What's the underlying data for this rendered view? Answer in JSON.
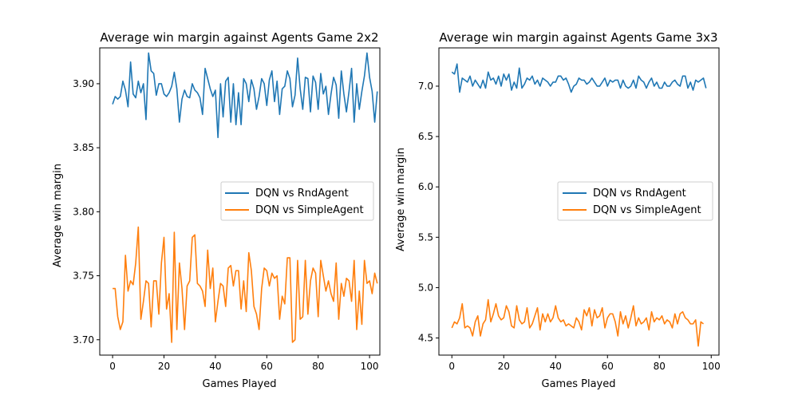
{
  "chart_data": [
    {
      "type": "line",
      "title": "Average win margin against Agents Game 2x2",
      "xlabel": "Games Played",
      "ylabel": "Average win margin",
      "xlim": [
        -5,
        104
      ],
      "ylim": [
        3.688,
        3.928
      ],
      "xticks": [
        0,
        20,
        40,
        60,
        80,
        100
      ],
      "yticks": [
        3.7,
        3.75,
        3.8,
        3.85,
        3.9
      ],
      "ytick_labels": [
        "3.70",
        "3.75",
        "3.80",
        "3.85",
        "3.90"
      ],
      "legend_location": "center-right",
      "grid": false,
      "series": [
        {
          "name": "DQN vs RndAgent",
          "color": "#1f77b4",
          "values": [
            3.884,
            3.89,
            3.888,
            3.89,
            3.902,
            3.895,
            3.882,
            3.917,
            3.892,
            3.889,
            3.902,
            3.893,
            3.9,
            3.872,
            3.924,
            3.91,
            3.908,
            3.891,
            3.9,
            3.9,
            3.892,
            3.89,
            3.893,
            3.898,
            3.909,
            3.896,
            3.87,
            3.888,
            3.895,
            3.89,
            3.889,
            3.9,
            3.895,
            3.893,
            3.889,
            3.876,
            3.912,
            3.904,
            3.896,
            3.89,
            3.895,
            3.858,
            3.9,
            3.874,
            3.902,
            3.905,
            3.87,
            3.9,
            3.868,
            3.893,
            3.868,
            3.904,
            3.9,
            3.886,
            3.903,
            3.896,
            3.88,
            3.89,
            3.904,
            3.9,
            3.883,
            3.903,
            3.91,
            3.886,
            3.902,
            3.876,
            3.896,
            3.898,
            3.91,
            3.904,
            3.882,
            3.891,
            3.92,
            3.896,
            3.88,
            3.905,
            3.904,
            3.878,
            3.906,
            3.901,
            3.88,
            3.908,
            3.892,
            3.898,
            3.876,
            3.892,
            3.905,
            3.899,
            3.873,
            3.91,
            3.892,
            3.878,
            3.894,
            3.912,
            3.87,
            3.9,
            3.88,
            3.894,
            3.906,
            3.924,
            3.905,
            3.894,
            3.87,
            3.894
          ],
          "x_start": 0
        },
        {
          "name": "DQN vs SimpleAgent",
          "color": "#ff7f0e",
          "values": [
            3.74,
            3.74,
            3.718,
            3.708,
            3.714,
            3.766,
            3.738,
            3.746,
            3.743,
            3.76,
            3.788,
            3.716,
            3.73,
            3.746,
            3.744,
            3.71,
            3.746,
            3.746,
            3.72,
            3.76,
            3.78,
            3.724,
            3.736,
            3.698,
            3.784,
            3.708,
            3.76,
            3.74,
            3.708,
            3.742,
            3.746,
            3.78,
            3.782,
            3.744,
            3.742,
            3.738,
            3.726,
            3.77,
            3.74,
            3.756,
            3.714,
            3.73,
            3.744,
            3.742,
            3.726,
            3.756,
            3.758,
            3.742,
            3.754,
            3.754,
            3.724,
            3.746,
            3.722,
            3.768,
            3.754,
            3.726,
            3.72,
            3.708,
            3.74,
            3.756,
            3.754,
            3.742,
            3.752,
            3.748,
            3.75,
            3.716,
            3.734,
            3.728,
            3.764,
            3.764,
            3.698,
            3.7,
            3.762,
            3.716,
            3.718,
            3.762,
            3.72,
            3.746,
            3.756,
            3.752,
            3.718,
            3.762,
            3.75,
            3.738,
            3.746,
            3.736,
            3.73,
            3.76,
            3.716,
            3.744,
            3.734,
            3.748,
            3.746,
            3.73,
            3.762,
            3.708,
            3.738,
            3.712,
            3.762,
            3.744,
            3.746,
            3.736,
            3.752,
            3.744
          ],
          "x_start": 0
        }
      ]
    },
    {
      "type": "line",
      "title": "Average win margin against Agents Game 3x3",
      "xlabel": "Games Played",
      "ylabel": "Average win margin",
      "xlim": [
        -5,
        103
      ],
      "ylim": [
        4.33,
        7.38
      ],
      "xticks": [
        0,
        20,
        40,
        60,
        80,
        100
      ],
      "yticks": [
        4.5,
        5.0,
        5.5,
        6.0,
        6.5,
        7.0
      ],
      "ytick_labels": [
        "4.5",
        "5.0",
        "5.5",
        "6.0",
        "6.5",
        "7.0"
      ],
      "legend_location": "center-right",
      "grid": false,
      "series": [
        {
          "name": "DQN vs RndAgent",
          "color": "#1f77b4",
          "values": [
            7.14,
            7.12,
            7.22,
            6.94,
            7.08,
            7.06,
            7.04,
            7.1,
            7.0,
            7.06,
            7.02,
            6.98,
            7.06,
            6.98,
            7.14,
            7.06,
            7.08,
            7.02,
            7.1,
            7.0,
            7.12,
            7.06,
            7.12,
            6.96,
            7.04,
            6.98,
            7.18,
            6.98,
            7.02,
            7.08,
            7.06,
            7.1,
            7.02,
            7.06,
            7.0,
            7.08,
            7.06,
            7.04,
            7.0,
            7.04,
            7.04,
            7.1,
            7.1,
            7.06,
            7.08,
            7.02,
            6.94,
            7.0,
            7.02,
            7.08,
            7.06,
            7.06,
            7.02,
            7.04,
            7.08,
            7.04,
            7.0,
            7.0,
            7.04,
            7.08,
            7.0,
            7.06,
            7.04,
            7.06,
            7.06,
            6.98,
            7.06,
            7.0,
            6.98,
            7.0,
            7.06,
            6.98,
            7.1,
            7.06,
            7.04,
            6.98,
            7.04,
            7.08,
            7.0,
            7.04,
            6.98,
            6.98,
            7.04,
            7.0,
            7.0,
            7.04,
            7.06,
            7.02,
            7.0,
            7.1,
            7.1,
            6.98,
            7.04,
            6.96,
            7.06,
            7.04,
            7.06,
            7.08,
            6.98
          ],
          "x_start": 0
        },
        {
          "name": "DQN vs SimpleAgent",
          "color": "#ff7f0e",
          "values": [
            4.6,
            4.66,
            4.64,
            4.7,
            4.84,
            4.6,
            4.62,
            4.6,
            4.52,
            4.66,
            4.72,
            4.52,
            4.64,
            4.68,
            4.88,
            4.66,
            4.74,
            4.84,
            4.72,
            4.68,
            4.7,
            4.82,
            4.76,
            4.62,
            4.6,
            4.82,
            4.68,
            4.64,
            4.66,
            4.8,
            4.6,
            4.64,
            4.72,
            4.8,
            4.58,
            4.74,
            4.66,
            4.74,
            4.66,
            4.7,
            4.82,
            4.7,
            4.66,
            4.68,
            4.62,
            4.64,
            4.62,
            4.6,
            4.7,
            4.66,
            4.58,
            4.78,
            4.72,
            4.8,
            4.62,
            4.78,
            4.7,
            4.72,
            4.8,
            4.6,
            4.7,
            4.74,
            4.74,
            4.66,
            4.52,
            4.76,
            4.64,
            4.72,
            4.6,
            4.7,
            4.82,
            4.62,
            4.7,
            4.64,
            4.66,
            4.7,
            4.58,
            4.76,
            4.66,
            4.7,
            4.68,
            4.72,
            4.64,
            4.68,
            4.66,
            4.6,
            4.74,
            4.64,
            4.74,
            4.76,
            4.7,
            4.68,
            4.64,
            4.64,
            4.68,
            4.42,
            4.66,
            4.64
          ],
          "x_start": 0
        }
      ]
    }
  ]
}
